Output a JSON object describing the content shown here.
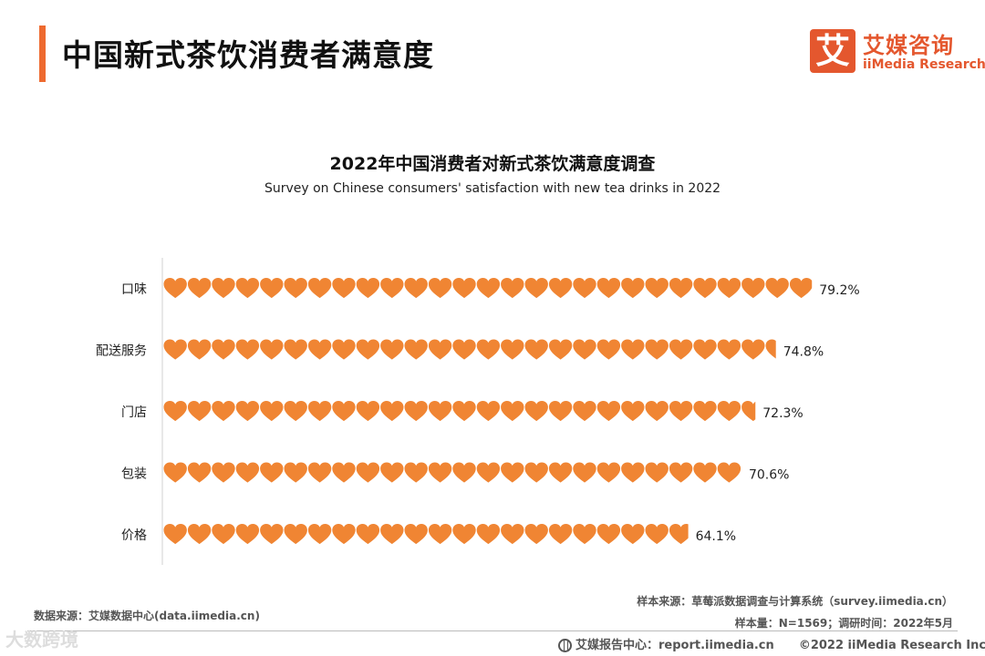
{
  "header": {
    "title": "中国新式茶饮消费者满意度",
    "logo_mark": "艾",
    "logo_cn": "艾媒咨询",
    "logo_en": "iiMedia Research"
  },
  "chart_data": {
    "type": "bar",
    "title": "2022年中国消费者对新式茶饮满意度调查",
    "subtitle": "Survey on Chinese consumers' satisfaction with new tea drinks in 2022",
    "categories": [
      "口味",
      "配送服务",
      "门店",
      "包装",
      "价格"
    ],
    "values": [
      79.2,
      74.8,
      72.3,
      70.6,
      64.1
    ],
    "value_labels": [
      "79.2%",
      "74.8%",
      "72.3%",
      "70.6%",
      "64.1%"
    ],
    "mark": "heart",
    "color": "#f08533",
    "xlim": [
      0,
      100
    ],
    "grid": false
  },
  "footer": {
    "source_left": "数据来源：艾媒数据中心(data.iimedia.cn)",
    "sample_source": "样本来源：草莓派数据调查与计算系统（survey.iimedia.cn）",
    "sample_info": "样本量：N=1569；调研时间：2022年5月",
    "report_center": "艾媒报告中心：report.iimedia.cn",
    "copyright": "©2022  iiMedia Research  Inc",
    "watermark": "大数跨境"
  }
}
